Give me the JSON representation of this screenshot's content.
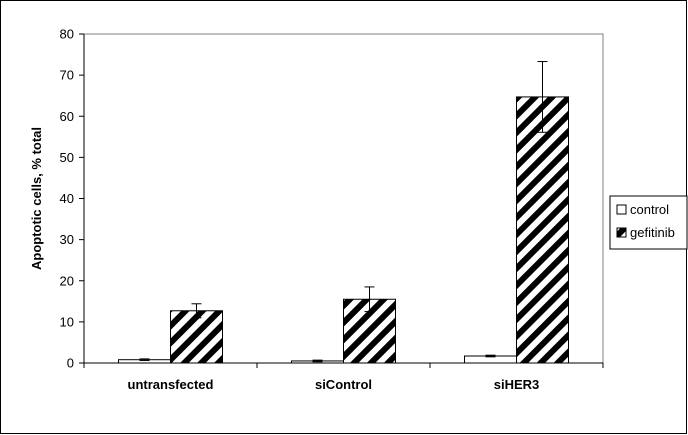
{
  "chart_data": {
    "type": "bar",
    "title": "",
    "xlabel": "",
    "ylabel": "Apoptotic cells, % total",
    "ylim": [
      0,
      80
    ],
    "yticks": [
      0,
      10,
      20,
      30,
      40,
      50,
      60,
      70,
      80
    ],
    "grid": false,
    "legend_position": "right",
    "categories": [
      "untransfected",
      "siControl",
      "siHER3"
    ],
    "series": [
      {
        "name": "control",
        "values": [
          0.8,
          0.5,
          1.7
        ],
        "errors": [
          0.2,
          0.2,
          0.2
        ],
        "pattern": "white",
        "color": "#ffffff"
      },
      {
        "name": "gefitinib",
        "values": [
          12.7,
          15.5,
          64.7
        ],
        "errors": [
          1.7,
          3.0,
          8.6
        ],
        "pattern": "diagonal-stripes",
        "color": "#000000"
      }
    ]
  }
}
